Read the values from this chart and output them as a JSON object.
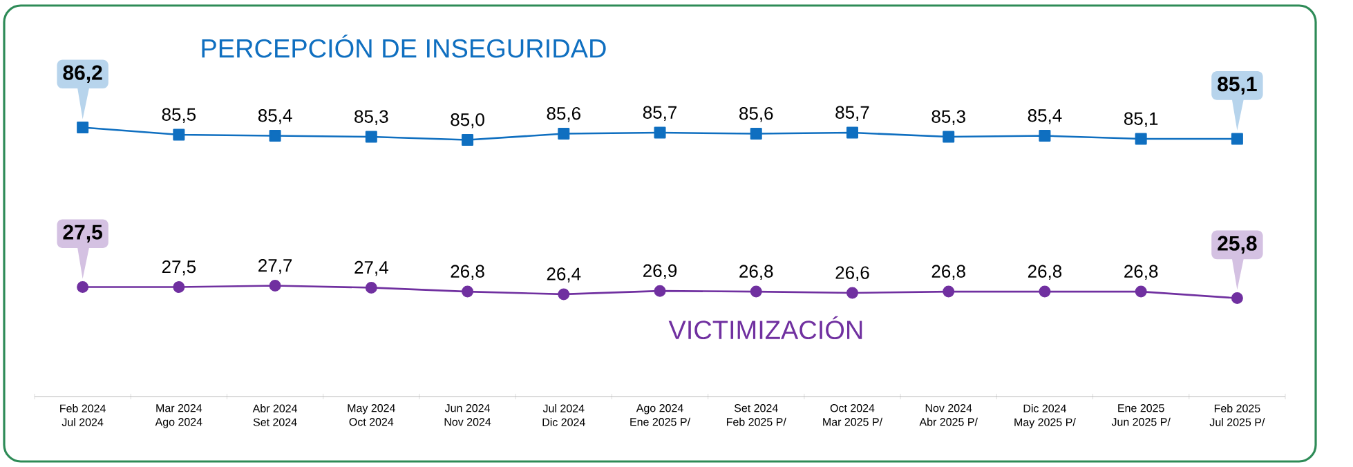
{
  "chart_data": [
    {
      "type": "line",
      "tick_labels": false,
      "categories": [
        null,
        null,
        null,
        null,
        null,
        null,
        null,
        null,
        null,
        null,
        null,
        null,
        null
      ],
      "series": [
        {
          "name": "PERCEPCIÓN DE INSEGURIDAD",
          "color": "#0f6fc0",
          "marker": "square",
          "values": [
            86.2,
            85.5,
            85.4,
            85.3,
            85.0,
            85.6,
            85.7,
            85.6,
            85.7,
            85.3,
            85.4,
            85.1,
            85.1
          ],
          "value_labels": [
            "86,2",
            "85,5",
            "85,4",
            "85,3",
            "85,0",
            "85,6",
            "85,7",
            "85,6",
            "85,7",
            "85,3",
            "85,4",
            "85,1",
            "85,1"
          ]
        }
      ]
    },
    {
      "type": "line",
      "tick_labels": "x",
      "categories": [
        "Feb 2024\nJul 2024",
        "Mar 2024\nAgo 2024",
        "Abr 2024\nSet 2024",
        "May 2024\nOct 2024",
        "Jun 2024\nNov 2024",
        "Jul 2024\nDic 2024",
        "Ago 2024\nEne 2025 P/",
        "Set 2024\nFeb 2025 P/",
        "Oct 2024\nMar 2025 P/",
        "Nov 2024\nAbr 2025 P/",
        "Dic 2024\nMay 2025 P/",
        "Ene 2025\nJun 2025 P/",
        "Feb 2025\nJul 2025 P/"
      ],
      "series": [
        {
          "name": "VICTIMIZACIÓN",
          "color": "#7030a0",
          "marker": "circle",
          "values": [
            27.5,
            27.5,
            27.7,
            27.4,
            26.8,
            26.4,
            26.9,
            26.8,
            26.6,
            26.8,
            26.8,
            26.8,
            25.8
          ],
          "value_labels": [
            "27,5",
            "27,5",
            "27,7",
            "27,4",
            "26,8",
            "26,4",
            "26,9",
            "26,8",
            "26,6",
            "26,8",
            "26,8",
            "26,8",
            "25,8"
          ]
        }
      ]
    }
  ]
}
